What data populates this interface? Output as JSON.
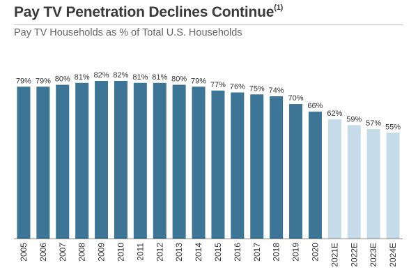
{
  "header": {
    "title": "Pay TV Penetration Declines Continue",
    "title_note": "(1)",
    "subtitle": "Pay TV Households as % of Total U.S. Households"
  },
  "chart_data": {
    "type": "bar",
    "title": "Pay TV Penetration Declines Continue",
    "subtitle": "Pay TV Households as % of Total U.S. Households",
    "xlabel": "",
    "ylabel": "",
    "ylim": [
      0,
      82
    ],
    "grid": false,
    "categories": [
      "2005",
      "2006",
      "2007",
      "2008",
      "2009",
      "2010",
      "2011",
      "2012",
      "2013",
      "2014",
      "2015",
      "2016",
      "2017",
      "2018",
      "2019",
      "2020",
      "2021E",
      "2022E",
      "2023E",
      "2024E"
    ],
    "values": [
      79,
      79,
      80,
      81,
      82,
      82,
      81,
      81,
      80,
      79,
      77,
      76,
      75,
      74,
      70,
      66,
      62,
      59,
      57,
      55
    ],
    "labels": [
      "79%",
      "79%",
      "80%",
      "81%",
      "82%",
      "82%",
      "81%",
      "81%",
      "80%",
      "79%",
      "77%",
      "76%",
      "75%",
      "74%",
      "70%",
      "66%",
      "62%",
      "59%",
      "57%",
      "55%"
    ],
    "estimated": [
      false,
      false,
      false,
      false,
      false,
      false,
      false,
      false,
      false,
      false,
      false,
      false,
      false,
      false,
      false,
      false,
      true,
      true,
      true,
      true
    ],
    "colors": {
      "actual": "#3d7597",
      "estimate": "#c5dbe7",
      "axis": "#888888",
      "label": "#333333"
    }
  }
}
